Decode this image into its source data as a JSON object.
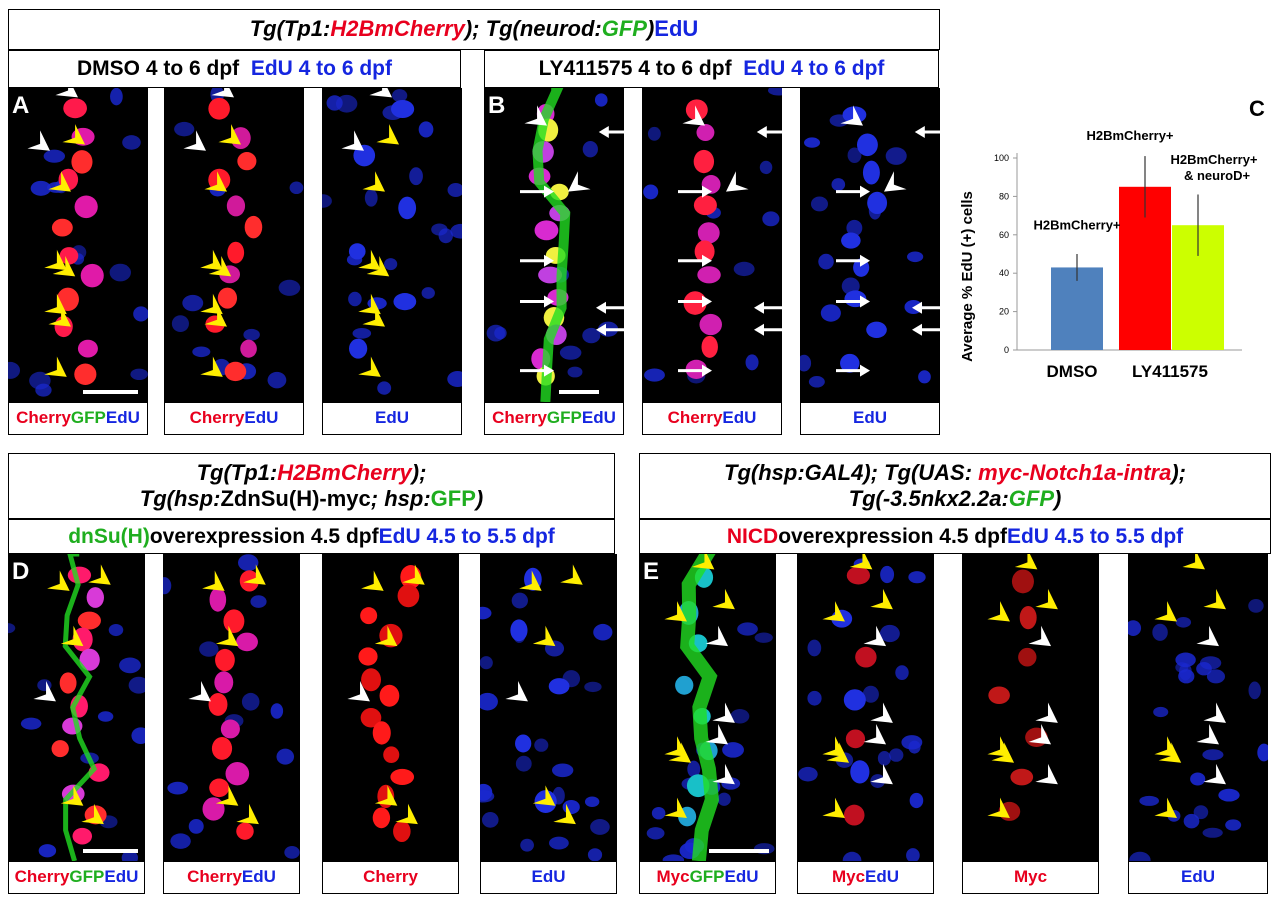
{
  "figure": {
    "panel_a": {
      "header": {
        "parts": [
          {
            "text": "Tg(Tp1:",
            "color": "k",
            "italic": true
          },
          {
            "text": "H2BmCherry",
            "color": "r",
            "italic": true
          },
          {
            "text": "); Tg(neurod:",
            "color": "k",
            "italic": true
          },
          {
            "text": "GFP",
            "color": "g",
            "italic": true
          },
          {
            "text": ") ",
            "color": "k",
            "italic": true
          },
          {
            "text": "EdU",
            "color": "b",
            "italic": false
          }
        ]
      },
      "condition_dmso": {
        "left": "DMSO 4 to 6 dpf",
        "right": "EdU 4 to 6 dpf"
      },
      "condition_ly": {
        "left": "LY411575 4 to 6 dpf",
        "right": "EdU 4 to 6 dpf"
      },
      "letter_a": "A",
      "letter_b": "B",
      "captions_a": [
        [
          {
            "text": "Cherry",
            "color": "r"
          },
          {
            "text": " GFP",
            "color": "g"
          },
          {
            "text": " EdU",
            "color": "b"
          }
        ],
        [
          {
            "text": "Cherry",
            "color": "r"
          },
          {
            "text": " EdU",
            "color": "b"
          }
        ],
        [
          {
            "text": "EdU",
            "color": "b"
          }
        ]
      ],
      "captions_b": [
        [
          {
            "text": "Cherry",
            "color": "r"
          },
          {
            "text": " GFP",
            "color": "g"
          },
          {
            "text": " EdU",
            "color": "b"
          }
        ],
        [
          {
            "text": "Cherry",
            "color": "r"
          },
          {
            "text": " EdU",
            "color": "b"
          }
        ],
        [
          {
            "text": "EdU",
            "color": "b"
          }
        ]
      ]
    },
    "panel_c": {
      "letter": "C",
      "chart_data": {
        "type": "bar",
        "ylabel": "Average % EdU (+) cells",
        "ylim": [
          0,
          100
        ],
        "yticks": [
          0,
          20,
          40,
          60,
          80,
          100
        ],
        "groups": [
          "DMSO",
          "LY411575"
        ],
        "bars": [
          {
            "group": "DMSO",
            "label": "H2BmCherry+",
            "value": 43,
            "err": 7,
            "color": "#4f81bd"
          },
          {
            "group": "LY411575",
            "label": "H2BmCherry+",
            "value": 85,
            "err": 16,
            "color": "#ff0000"
          },
          {
            "group": "LY411575",
            "label": "H2BmCherry+ & neuroD+",
            "value": 65,
            "err": 16,
            "color": "#ccff00"
          }
        ]
      }
    },
    "panel_d": {
      "letter": "D",
      "header_line1": [
        {
          "text": "Tg(Tp1:",
          "color": "k"
        },
        {
          "text": "H2BmCherry",
          "color": "r"
        },
        {
          "text": ");",
          "color": "k"
        }
      ],
      "header_line2": [
        {
          "text": "Tg(hsp:",
          "color": "k",
          "italic": true
        },
        {
          "text": "ZdnSu(H)-myc",
          "color": "k",
          "italic": false
        },
        {
          "text": "; hsp:",
          "color": "k",
          "italic": true
        },
        {
          "text": "GFP",
          "color": "g",
          "italic": false
        },
        {
          "text": ")",
          "color": "k",
          "italic": true
        }
      ],
      "condition": [
        {
          "text": "dnSu(H)",
          "color": "g"
        },
        {
          "text": " overexpression 4.5 dpf  ",
          "color": "k"
        },
        {
          "text": "EdU 4.5 to 5.5 dpf",
          "color": "b"
        }
      ],
      "captions": [
        [
          {
            "text": "Cherry",
            "color": "r"
          },
          {
            "text": " GFP",
            "color": "g"
          },
          {
            "text": " EdU",
            "color": "b"
          }
        ],
        [
          {
            "text": "Cherry",
            "color": "r"
          },
          {
            "text": " EdU",
            "color": "b"
          }
        ],
        [
          {
            "text": "Cherry",
            "color": "r"
          }
        ],
        [
          {
            "text": "EdU",
            "color": "b"
          }
        ]
      ]
    },
    "panel_e": {
      "letter": "E",
      "header_line1": [
        {
          "text": "Tg(hsp:GAL4); Tg(UAS: ",
          "color": "k"
        },
        {
          "text": "myc-Notch1a-intra",
          "color": "r"
        },
        {
          "text": ");",
          "color": "k"
        }
      ],
      "header_line2": [
        {
          "text": "Tg(-3.5nkx2.2a:",
          "color": "k"
        },
        {
          "text": "GFP",
          "color": "g"
        },
        {
          "text": ")",
          "color": "k"
        }
      ],
      "condition": [
        {
          "text": "NICD",
          "color": "r"
        },
        {
          "text": " overexpression 4.5 dpf  ",
          "color": "k"
        },
        {
          "text": "EdU 4.5 to 5.5 dpf",
          "color": "b"
        }
      ],
      "captions": [
        [
          {
            "text": "Myc",
            "color": "r"
          },
          {
            "text": " GFP",
            "color": "g"
          },
          {
            "text": " EdU",
            "color": "b"
          }
        ],
        [
          {
            "text": "Myc",
            "color": "r"
          },
          {
            "text": " EdU",
            "color": "b"
          }
        ],
        [
          {
            "text": "Myc",
            "color": "r"
          }
        ],
        [
          {
            "text": "EdU",
            "color": "b"
          }
        ]
      ]
    }
  }
}
